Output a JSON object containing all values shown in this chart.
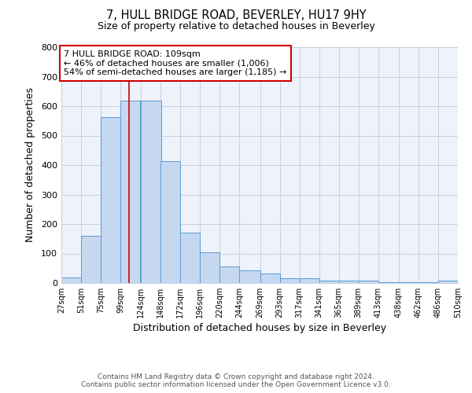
{
  "title": "7, HULL BRIDGE ROAD, BEVERLEY, HU17 9HY",
  "subtitle": "Size of property relative to detached houses in Beverley",
  "xlabel": "Distribution of detached houses by size in Beverley",
  "ylabel": "Number of detached properties",
  "bar_left_edges": [
    27,
    51,
    75,
    99,
    124,
    148,
    172,
    196,
    220,
    244,
    269,
    293,
    317,
    341,
    365,
    389,
    413,
    438,
    462,
    486
  ],
  "bar_heights": [
    20,
    160,
    562,
    620,
    620,
    413,
    170,
    103,
    55,
    42,
    33,
    15,
    15,
    8,
    8,
    8,
    2,
    2,
    2,
    8
  ],
  "bar_widths": [
    24,
    24,
    24,
    24,
    25,
    24,
    24,
    24,
    24,
    25,
    24,
    24,
    24,
    24,
    24,
    24,
    25,
    24,
    24,
    24
  ],
  "tick_labels": [
    "27sqm",
    "51sqm",
    "75sqm",
    "99sqm",
    "124sqm",
    "148sqm",
    "172sqm",
    "196sqm",
    "220sqm",
    "244sqm",
    "269sqm",
    "293sqm",
    "317sqm",
    "341sqm",
    "365sqm",
    "389sqm",
    "413sqm",
    "438sqm",
    "462sqm",
    "486sqm",
    "510sqm"
  ],
  "tick_positions": [
    27,
    51,
    75,
    99,
    124,
    148,
    172,
    196,
    220,
    244,
    269,
    293,
    317,
    341,
    365,
    389,
    413,
    438,
    462,
    486,
    510
  ],
  "ylim": [
    0,
    800
  ],
  "yticks": [
    0,
    100,
    200,
    300,
    400,
    500,
    600,
    700,
    800
  ],
  "bar_color": "#c5d8f0",
  "bar_edge_color": "#5b9bd5",
  "ref_line_x": 109,
  "ref_line_color": "#cc0000",
  "annotation_line1": "7 HULL BRIDGE ROAD: 109sqm",
  "annotation_line2": "← 46% of detached houses are smaller (1,006)",
  "annotation_line3": "54% of semi-detached houses are larger (1,185) →",
  "annotation_box_color": "#ffffff",
  "annotation_box_edge_color": "#cc0000",
  "footer_line1": "Contains HM Land Registry data © Crown copyright and database right 2024.",
  "footer_line2": "Contains public sector information licensed under the Open Government Licence v3.0.",
  "background_color": "#ffffff",
  "plot_bg_color": "#eef2fa",
  "grid_color": "#c8d0e0"
}
